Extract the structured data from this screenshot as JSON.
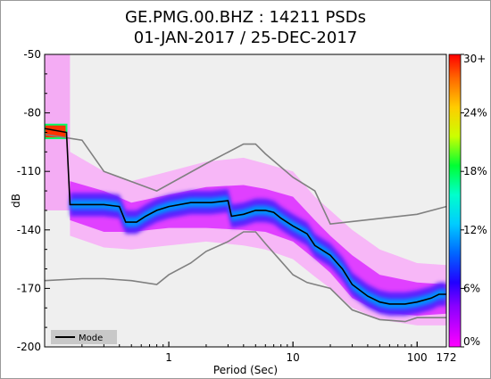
{
  "chart_data": {
    "type": "heatmap",
    "title_line1": "GE.PMG.00.BHZ : 14211 PSDs",
    "title_line2": "01-JAN-2017 / 25-DEC-2017",
    "xlabel": "Period (Sec)",
    "ylabel": "dB",
    "x_scale": "log",
    "xlim": [
      0.1,
      172
    ],
    "ylim": [
      -200,
      -50
    ],
    "x_ticks": [
      {
        "value": 1,
        "label": "1"
      },
      {
        "value": 10,
        "label": "10"
      },
      {
        "value": 100,
        "label": "100"
      },
      {
        "value": 172,
        "label": "172"
      }
    ],
    "y_ticks": [
      {
        "value": -50,
        "label": "-50"
      },
      {
        "value": -80,
        "label": "-80"
      },
      {
        "value": -110,
        "label": "-110"
      },
      {
        "value": -140,
        "label": "-140"
      },
      {
        "value": -170,
        "label": "-170"
      },
      {
        "value": -200,
        "label": "-200"
      }
    ],
    "colorbar": {
      "ticks": [
        {
          "value": 30,
          "label": "30+"
        },
        {
          "value": 24,
          "label": "24%"
        },
        {
          "value": 18,
          "label": "18%"
        },
        {
          "value": 12,
          "label": "12%"
        },
        {
          "value": 6,
          "label": "6%"
        },
        {
          "value": 0,
          "label": "0%"
        }
      ],
      "range": [
        0,
        30
      ],
      "colors": [
        "#ff00ff",
        "#3300ff",
        "#0088ff",
        "#00ffff",
        "#00ff44",
        "#ffff00",
        "#ff8800",
        "#ff0000"
      ]
    },
    "legend": {
      "position": "bottom-left",
      "entries": [
        {
          "name": "Mode",
          "color": "#000000"
        }
      ]
    },
    "mode_line": [
      [
        0.1,
        -88
      ],
      [
        0.15,
        -90
      ],
      [
        0.16,
        -127
      ],
      [
        0.2,
        -127
      ],
      [
        0.3,
        -127
      ],
      [
        0.4,
        -128
      ],
      [
        0.45,
        -136
      ],
      [
        0.55,
        -136
      ],
      [
        0.65,
        -133
      ],
      [
        0.8,
        -130
      ],
      [
        1.0,
        -128
      ],
      [
        1.5,
        -126
      ],
      [
        2.0,
        -126
      ],
      [
        2.2,
        -126
      ],
      [
        3.0,
        -125
      ],
      [
        3.2,
        -133
      ],
      [
        4.0,
        -132
      ],
      [
        5.0,
        -130
      ],
      [
        6.0,
        -130
      ],
      [
        7.0,
        -131
      ],
      [
        8.0,
        -134
      ],
      [
        10,
        -138
      ],
      [
        13,
        -142
      ],
      [
        15,
        -148
      ],
      [
        20,
        -153
      ],
      [
        25,
        -160
      ],
      [
        30,
        -168
      ],
      [
        40,
        -174
      ],
      [
        50,
        -177
      ],
      [
        60,
        -178
      ],
      [
        80,
        -178
      ],
      [
        100,
        -177
      ],
      [
        130,
        -175
      ],
      [
        150,
        -173
      ],
      [
        172,
        -173
      ]
    ],
    "nhnm_line": [
      [
        0.1,
        -91
      ],
      [
        0.2,
        -94
      ],
      [
        0.3,
        -110
      ],
      [
        0.8,
        -120
      ],
      [
        2.0,
        -106
      ],
      [
        4.0,
        -96
      ],
      [
        5.0,
        -96
      ],
      [
        6.0,
        -101
      ],
      [
        10,
        -113
      ],
      [
        15,
        -120
      ],
      [
        20,
        -137
      ],
      [
        100,
        -132
      ],
      [
        172,
        -128
      ]
    ],
    "nlnm_line": [
      [
        0.1,
        -166
      ],
      [
        0.2,
        -165
      ],
      [
        0.3,
        -165
      ],
      [
        0.5,
        -166
      ],
      [
        0.8,
        -168
      ],
      [
        1.0,
        -163
      ],
      [
        1.5,
        -157
      ],
      [
        2.0,
        -151
      ],
      [
        3.0,
        -146
      ],
      [
        4.0,
        -141
      ],
      [
        5.0,
        -141
      ],
      [
        6.0,
        -147
      ],
      [
        8.0,
        -156
      ],
      [
        10,
        -163
      ],
      [
        13,
        -167
      ],
      [
        15,
        -168
      ],
      [
        20,
        -170
      ],
      [
        30,
        -181
      ],
      [
        50,
        -186
      ],
      [
        80,
        -187
      ],
      [
        100,
        -185
      ],
      [
        130,
        -185
      ],
      [
        172,
        -185
      ]
    ],
    "density_band": {
      "upper": [
        [
          0.16,
          -115
        ],
        [
          0.3,
          -120
        ],
        [
          0.5,
          -126
        ],
        [
          1.0,
          -122
        ],
        [
          2.0,
          -118
        ],
        [
          4.0,
          -117
        ],
        [
          6.0,
          -119
        ],
        [
          10,
          -123
        ],
        [
          15,
          -135
        ],
        [
          20,
          -143
        ],
        [
          30,
          -153
        ],
        [
          50,
          -163
        ],
        [
          100,
          -167
        ],
        [
          172,
          -168
        ]
      ],
      "lower": [
        [
          0.16,
          -135
        ],
        [
          0.3,
          -141
        ],
        [
          0.5,
          -141
        ],
        [
          1.0,
          -139
        ],
        [
          2.0,
          -139
        ],
        [
          4.0,
          -140
        ],
        [
          6.0,
          -141
        ],
        [
          10,
          -146
        ],
        [
          15,
          -155
        ],
        [
          20,
          -162
        ],
        [
          30,
          -175
        ],
        [
          50,
          -182
        ],
        [
          100,
          -184
        ],
        [
          172,
          -183
        ]
      ],
      "upper_halo": [
        [
          0.16,
          -100
        ],
        [
          0.3,
          -110
        ],
        [
          0.5,
          -115
        ],
        [
          1.0,
          -110
        ],
        [
          2.0,
          -105
        ],
        [
          4.0,
          -103
        ],
        [
          6.0,
          -106
        ],
        [
          10,
          -110
        ],
        [
          15,
          -123
        ],
        [
          20,
          -130
        ],
        [
          30,
          -140
        ],
        [
          50,
          -150
        ],
        [
          100,
          -157
        ],
        [
          172,
          -158
        ]
      ],
      "lower_halo": [
        [
          0.16,
          -143
        ],
        [
          0.3,
          -149
        ],
        [
          0.5,
          -150
        ],
        [
          1.0,
          -148
        ],
        [
          2.0,
          -146
        ],
        [
          4.0,
          -148
        ],
        [
          6.0,
          -150
        ],
        [
          10,
          -155
        ],
        [
          15,
          -164
        ],
        [
          20,
          -170
        ],
        [
          30,
          -180
        ],
        [
          50,
          -186
        ],
        [
          100,
          -189
        ],
        [
          172,
          -189
        ]
      ]
    }
  }
}
